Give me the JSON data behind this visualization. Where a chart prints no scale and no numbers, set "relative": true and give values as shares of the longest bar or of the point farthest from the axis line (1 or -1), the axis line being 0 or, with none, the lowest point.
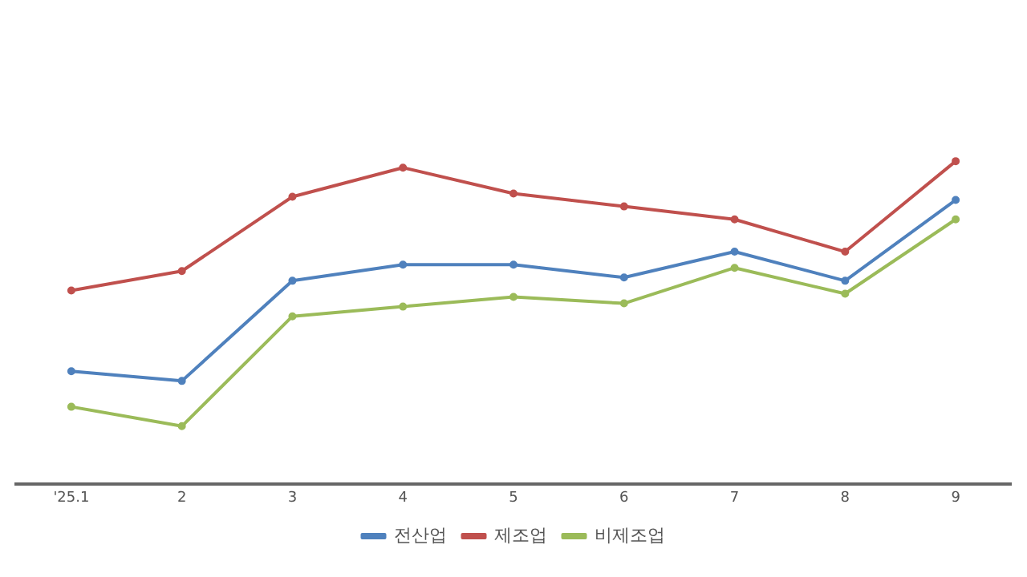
{
  "chart_data": {
    "type": "line",
    "relative": true,
    "categories": [
      "'25.1",
      "2",
      "3",
      "4",
      "5",
      "6",
      "7",
      "8",
      "9"
    ],
    "series": [
      {
        "name": "전산업",
        "color": "#4f81bd",
        "values": [
          0.35,
          0.32,
          0.63,
          0.68,
          0.68,
          0.64,
          0.72,
          0.63,
          0.88
        ]
      },
      {
        "name": "제조업",
        "color": "#c0504d",
        "values": [
          0.6,
          0.66,
          0.89,
          0.98,
          0.9,
          0.86,
          0.82,
          0.72,
          1
        ]
      },
      {
        "name": "비제조업",
        "color": "#9bbb59",
        "values": [
          0.24,
          0.18,
          0.52,
          0.55,
          0.58,
          0.56,
          0.67,
          0.59,
          0.82
        ]
      }
    ],
    "legend": "bottom",
    "marker": "circle",
    "grid": false
  }
}
